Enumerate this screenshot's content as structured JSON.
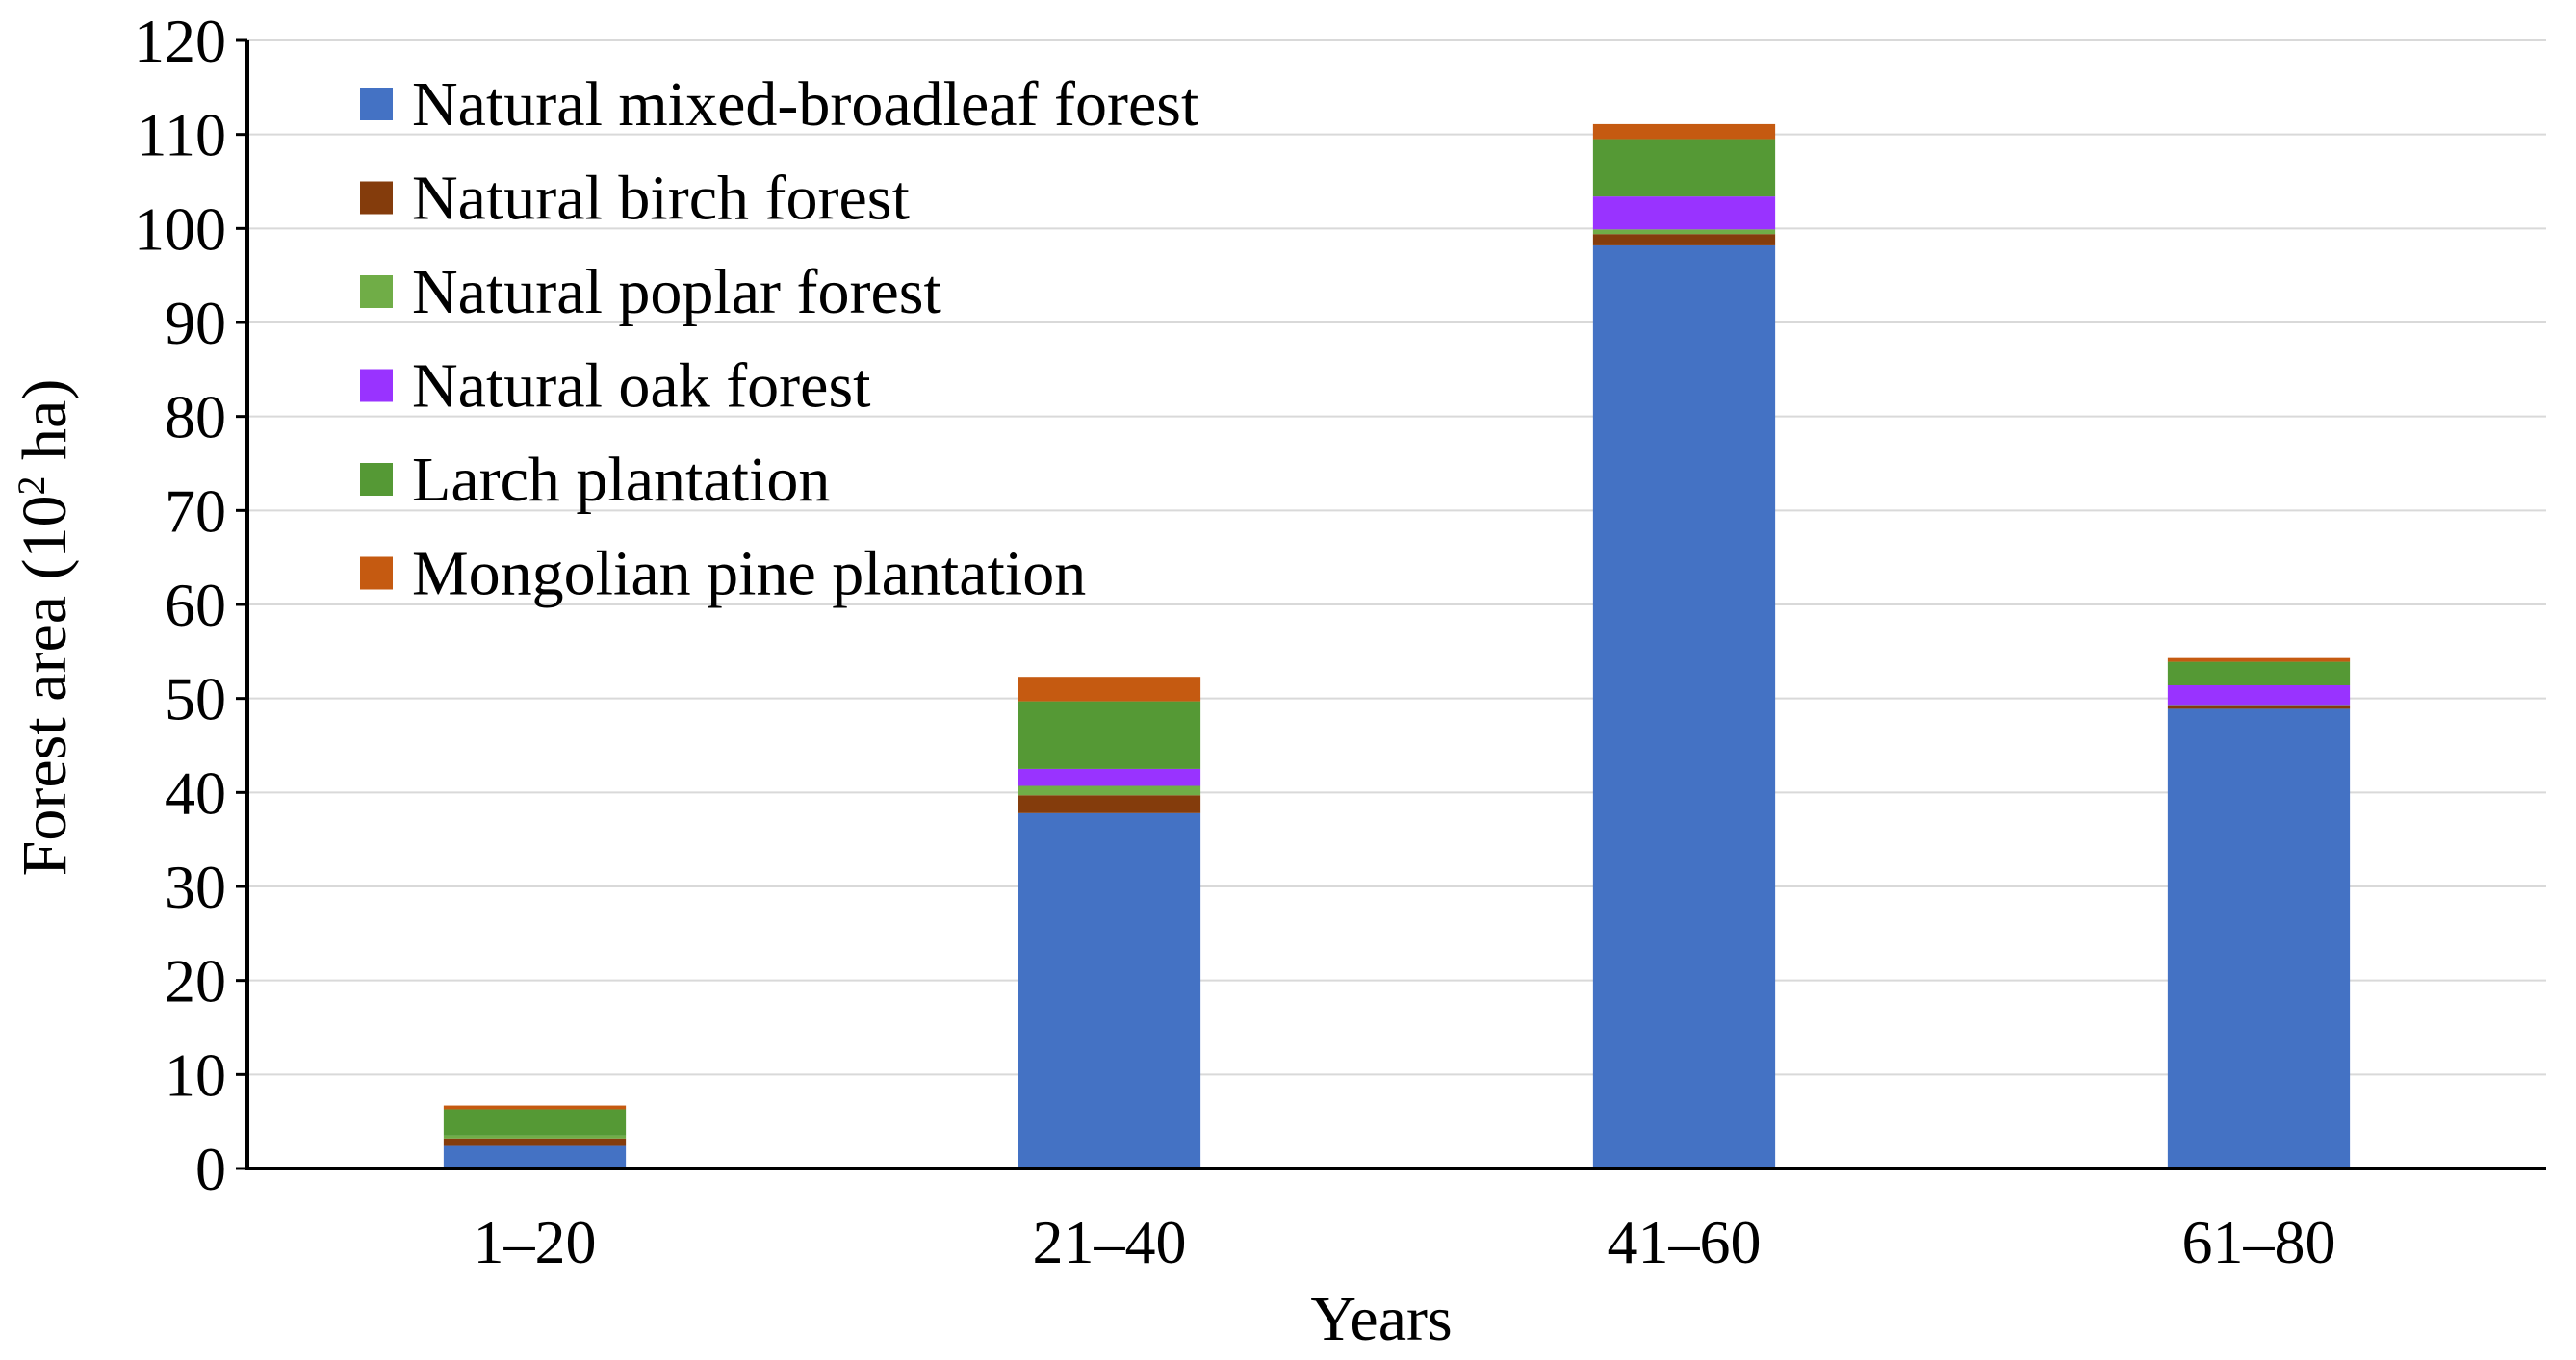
{
  "chart_data": {
    "type": "bar",
    "stacked": true,
    "title": "",
    "xlabel": "Years",
    "ylabel_prefix": "Forest area (10",
    "ylabel_sup": "2",
    "ylabel_suffix": " ha)",
    "ylim": [
      0,
      120
    ],
    "ytick_step": 10,
    "grid": true,
    "legend_position": "top-left",
    "categories": [
      "1–20",
      "21–40",
      "41–60",
      "61–80"
    ],
    "series": [
      {
        "name": "Natural mixed-broadleaf forest",
        "color": "#4472C4",
        "values": [
          2.4,
          37.8,
          98.2,
          48.9
        ]
      },
      {
        "name": "Natural birch  forest",
        "color": "#843C0C",
        "values": [
          0.8,
          1.9,
          1.2,
          0.3
        ]
      },
      {
        "name": "Natural poplar  forest",
        "color": "#70AD47",
        "values": [
          0.3,
          1.0,
          0.5,
          0.1
        ]
      },
      {
        "name": "Natural oak forest",
        "color": "#9933FF",
        "values": [
          0.0,
          1.8,
          3.5,
          2.1
        ]
      },
      {
        "name": "Larch plantation",
        "color": "#559935",
        "values": [
          2.8,
          7.2,
          6.1,
          2.5
        ]
      },
      {
        "name": "Mongolian pine plantation",
        "color": "#C55A11",
        "values": [
          0.4,
          2.6,
          1.6,
          0.4
        ]
      }
    ]
  }
}
